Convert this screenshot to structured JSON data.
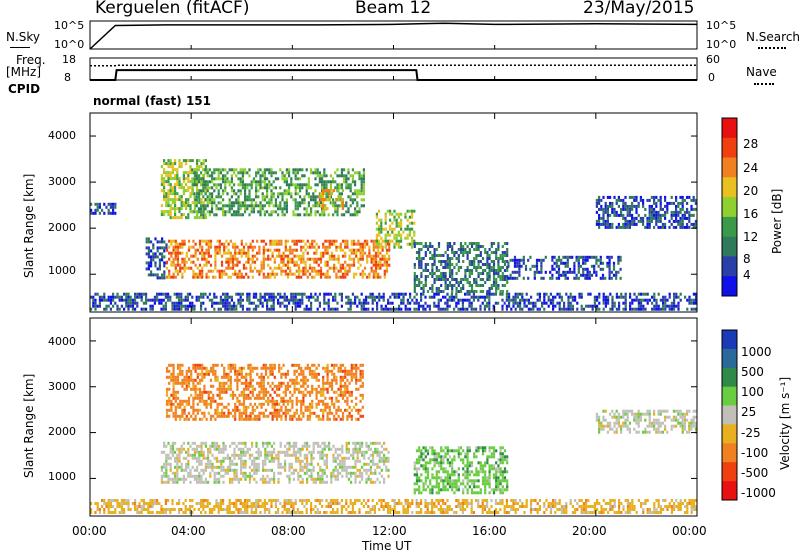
{
  "header": {
    "station": "Kerguelen (fitACF)",
    "beam": "Beam 12",
    "date": "23/May/2015"
  },
  "panels": {
    "nsky_label": "N.Sky",
    "nsky_tick_top": "10^5",
    "nsky_tick_bottom": "10^0",
    "nsearch_label": "N.Search",
    "nsearch_tick_top": "10^5",
    "nsearch_tick_bottom": "10^0",
    "freq_label": "Freq.",
    "freq_unit": "[MHz]",
    "freq_tick_top": "18",
    "freq_tick_bottom": "8",
    "nave_label": "Nave",
    "nave_tick_top": "60",
    "nave_tick_bottom": "0",
    "cpid_label": "CPID",
    "cpid_value": "normal (fast) 151"
  },
  "axes": {
    "ylabel": "Slant Range [km]",
    "yticks": [
      "1000",
      "2000",
      "3000",
      "4000"
    ],
    "xlabel": "Time UT",
    "xticks": [
      "00:00",
      "04:00",
      "08:00",
      "12:00",
      "16:00",
      "20:00",
      "00:00"
    ]
  },
  "power_bar": {
    "label": "Power [dB]",
    "ticks": [
      "4",
      "8",
      "12",
      "16",
      "20",
      "24",
      "28"
    ],
    "colors": [
      "#1010e8",
      "#2a3fa8",
      "#2f7a5a",
      "#3a9a4a",
      "#8fcf30",
      "#e8c020",
      "#f08020",
      "#f04010",
      "#e81010"
    ]
  },
  "velocity_bar": {
    "label": "Velocity [m s⁻¹]",
    "ticks": [
      "1000",
      "500",
      "100",
      "25",
      "-25",
      "-100",
      "-500",
      "-1000"
    ],
    "colors": [
      "#1a3ab8",
      "#2a6a9a",
      "#2f8a4a",
      "#6acc40",
      "#c0c0b8",
      "#e8b020",
      "#f08020",
      "#f04010",
      "#e81010"
    ]
  },
  "chart_data": [
    {
      "type": "line",
      "title": "Kerguelen (fitACF) Beam 12 23/May/2015",
      "series": [
        {
          "name": "N.Sky",
          "x": [
            0,
            1,
            3,
            6,
            9,
            12,
            13,
            14,
            16,
            20,
            24
          ],
          "values": [
            0,
            4.2,
            4.3,
            4.3,
            4.3,
            4.4,
            4.5,
            4.6,
            4.4,
            4.5,
            4.4
          ]
        }
      ],
      "ylim": [
        0,
        5
      ],
      "xlim": [
        0,
        24
      ]
    },
    {
      "type": "line",
      "series": [
        {
          "name": "Freq.",
          "x": [
            0,
            1,
            1.05,
            12.9,
            12.95,
            24
          ],
          "values": [
            8,
            8,
            12.5,
            12.5,
            8,
            8
          ]
        },
        {
          "name": "Nave",
          "x": [
            0,
            1,
            1.05,
            24
          ],
          "values": [
            39,
            39,
            40,
            40
          ]
        }
      ],
      "ylim": [
        8,
        18
      ],
      "xlim": [
        0,
        24
      ]
    },
    {
      "type": "heatmap",
      "xlabel": "Time UT",
      "ylabel": "Slant Range [km]",
      "xlim": [
        0,
        24
      ],
      "ylim": [
        180,
        4500
      ],
      "value_label": "Power [dB]",
      "regions": [
        {
          "t": [
            0.0,
            1.0
          ],
          "r": [
            2300,
            2550
          ],
          "level": 6
        },
        {
          "t": [
            0.0,
            24.0
          ],
          "r": [
            250,
            600
          ],
          "level": 6
        },
        {
          "t": [
            2.2,
            3.0
          ],
          "r": [
            900,
            1800
          ],
          "level": 7
        },
        {
          "t": [
            3.0,
            11.8
          ],
          "r": [
            950,
            1750
          ],
          "level": 26
        },
        {
          "t": [
            2.8,
            4.6
          ],
          "r": [
            2200,
            3500
          ],
          "level": 18
        },
        {
          "t": [
            4.0,
            10.8
          ],
          "r": [
            2300,
            3300
          ],
          "level": 16
        },
        {
          "t": [
            9.0,
            10.0
          ],
          "r": [
            2400,
            2850
          ],
          "level": 24
        },
        {
          "t": [
            11.3,
            12.8
          ],
          "r": [
            1600,
            2400
          ],
          "level": 18
        },
        {
          "t": [
            12.8,
            16.5
          ],
          "r": [
            600,
            1700
          ],
          "level": 12
        },
        {
          "t": [
            16.5,
            21.0
          ],
          "r": [
            900,
            1400
          ],
          "level": 7
        },
        {
          "t": [
            20.0,
            24.0
          ],
          "r": [
            2000,
            2700
          ],
          "level": 7
        }
      ]
    },
    {
      "type": "heatmap",
      "xlabel": "Time UT",
      "ylabel": "Slant Range [km]",
      "xlim": [
        0,
        24
      ],
      "ylim": [
        180,
        4500
      ],
      "value_label": "Velocity [m s-1]",
      "regions": [
        {
          "t": [
            0.0,
            24.0
          ],
          "r": [
            250,
            550
          ],
          "level": -25
        },
        {
          "t": [
            2.8,
            11.8
          ],
          "r": [
            900,
            1800
          ],
          "level": 0
        },
        {
          "t": [
            3.0,
            10.8
          ],
          "r": [
            2300,
            3500
          ],
          "level": -200
        },
        {
          "t": [
            12.8,
            16.5
          ],
          "r": [
            700,
            1700
          ],
          "level": 50
        },
        {
          "t": [
            20.0,
            24.0
          ],
          "r": [
            2000,
            2500
          ],
          "level": 0
        }
      ]
    }
  ]
}
